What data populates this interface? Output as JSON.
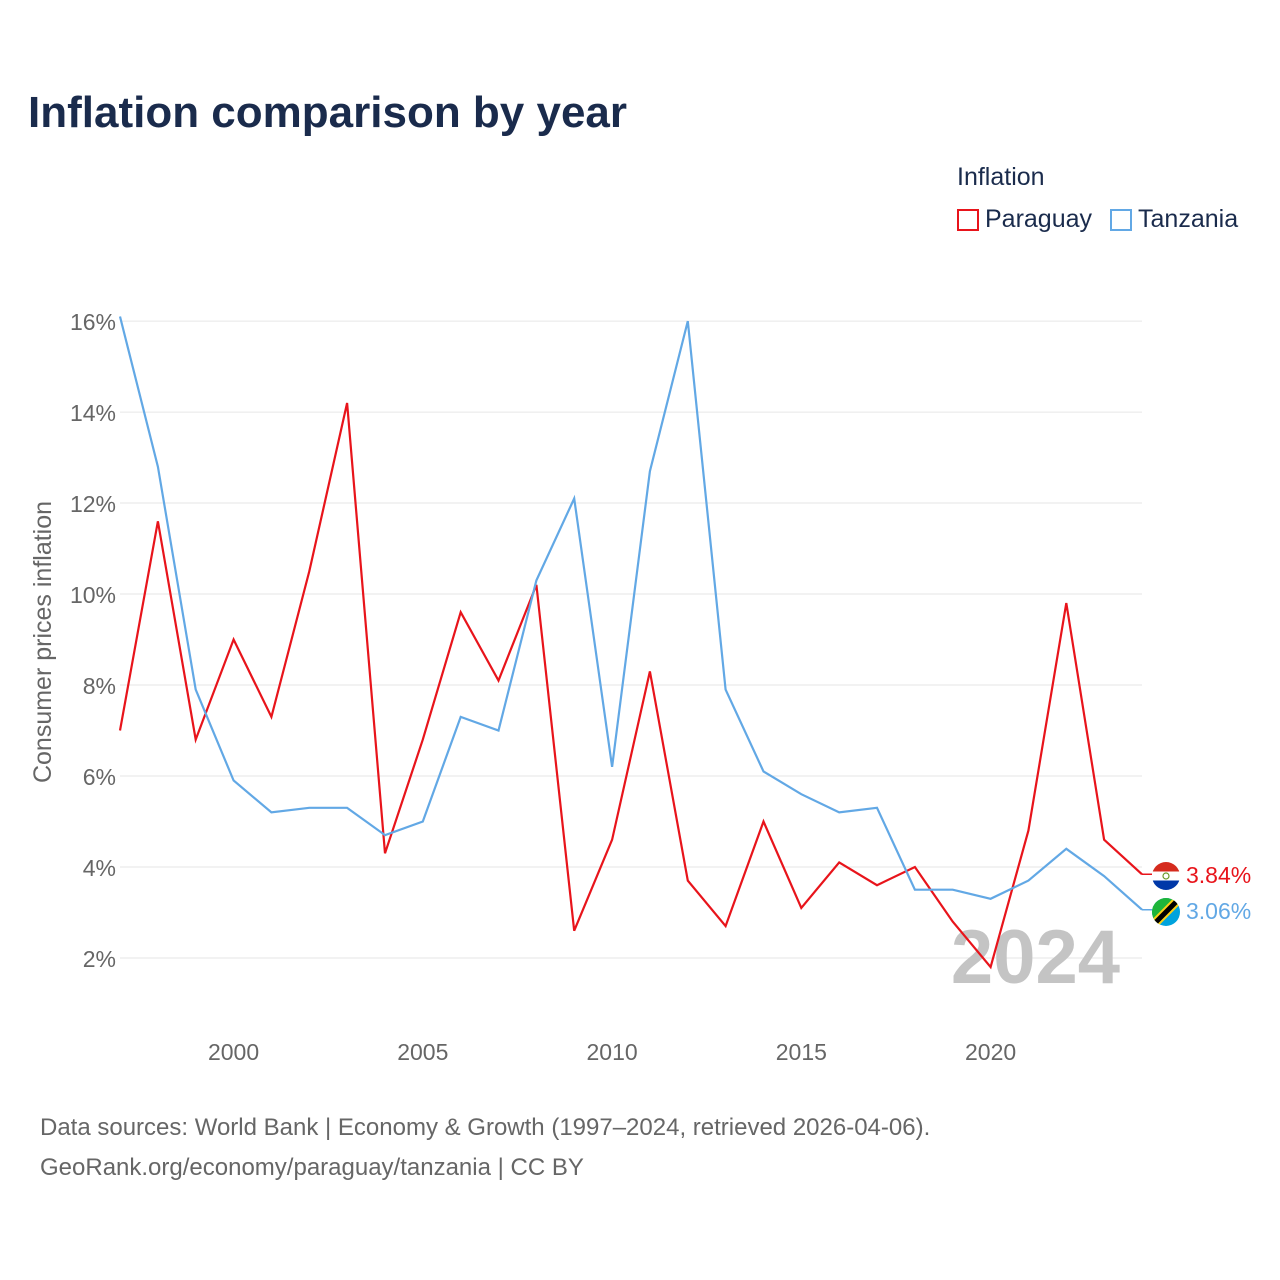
{
  "title": "Inflation comparison by year",
  "legend": {
    "title": "Inflation",
    "items": [
      {
        "name": "Paraguay",
        "color": "#e8141b"
      },
      {
        "name": "Tanzania",
        "color": "#62a8e5"
      }
    ]
  },
  "footer": {
    "line1": "Data sources: World Bank | Economy & Growth (1997–2024, retrieved 2026-04-06).",
    "line2": "GeoRank.org/economy/paraguay/tanzania | CC BY"
  },
  "chart_data": {
    "type": "line",
    "ylabel": "Consumer prices inflation",
    "xlabel": "",
    "ylim": [
      0.9,
      16.2
    ],
    "xlim": [
      1997,
      2024
    ],
    "y_ticks": [
      2,
      4,
      6,
      8,
      10,
      12,
      14,
      16
    ],
    "y_tick_labels": [
      "2%",
      "4%",
      "6%",
      "8%",
      "10%",
      "12%",
      "14%",
      "16%"
    ],
    "x_ticks": [
      2000,
      2005,
      2010,
      2015,
      2020
    ],
    "x_tick_labels": [
      "2000",
      "2005",
      "2010",
      "2015",
      "2020"
    ],
    "grid": true,
    "year_watermark": "2024",
    "x": [
      1997,
      1998,
      1999,
      2000,
      2001,
      2002,
      2003,
      2004,
      2005,
      2006,
      2007,
      2008,
      2009,
      2010,
      2011,
      2012,
      2013,
      2014,
      2015,
      2016,
      2017,
      2018,
      2019,
      2020,
      2021,
      2022,
      2023,
      2024
    ],
    "series": [
      {
        "name": "Paraguay",
        "color": "#e8141b",
        "end_label": "3.84%",
        "flag": "paraguay-flag",
        "values": [
          7.0,
          11.6,
          6.8,
          9.0,
          7.3,
          10.5,
          14.2,
          4.3,
          6.8,
          9.6,
          8.1,
          10.2,
          2.6,
          4.6,
          8.3,
          3.7,
          2.7,
          5.0,
          3.1,
          4.1,
          3.6,
          4.0,
          2.8,
          1.8,
          4.8,
          9.8,
          4.6,
          3.84
        ]
      },
      {
        "name": "Tanzania",
        "color": "#62a8e5",
        "end_label": "3.06%",
        "flag": "tanzania-flag",
        "values": [
          16.1,
          12.8,
          7.9,
          5.9,
          5.2,
          5.3,
          5.3,
          4.7,
          5.0,
          7.3,
          7.0,
          10.3,
          12.1,
          6.2,
          12.7,
          16.0,
          7.9,
          6.1,
          5.6,
          5.2,
          5.3,
          3.5,
          3.5,
          3.3,
          3.7,
          4.4,
          3.8,
          3.06
        ]
      }
    ]
  }
}
